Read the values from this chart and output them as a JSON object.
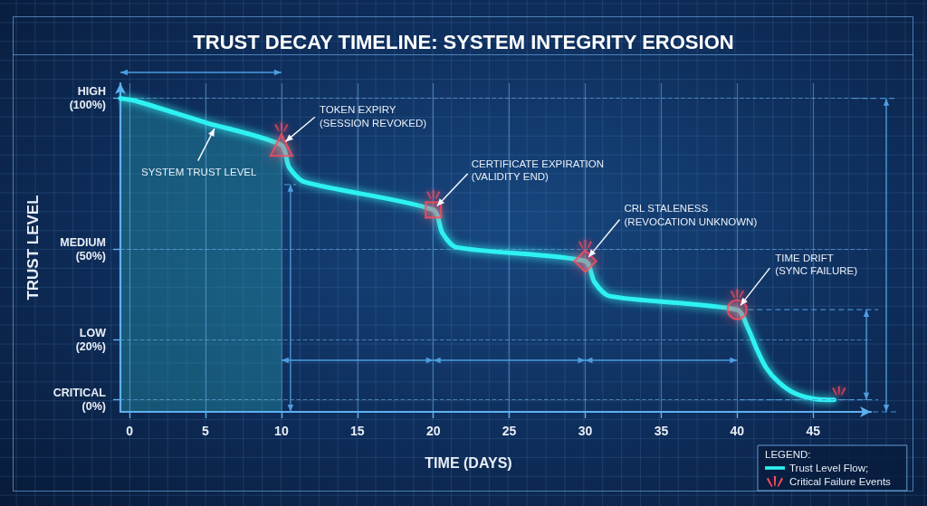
{
  "chart_data": {
    "type": "line",
    "title": "TRUST DECAY TIMELINE: SYSTEM INTEGRITY EROSION",
    "xlabel": "TIME (DAYS)",
    "ylabel": "TRUST LEVEL",
    "legend_title": "LEGEND:",
    "legend": "bottom right",
    "grid": true,
    "xlim": [
      -0.6,
      48.8
    ],
    "xticks": [
      0,
      5,
      10,
      15,
      20,
      25,
      30,
      35,
      40,
      45
    ],
    "ylim": [
      -4,
      105
    ],
    "yticks": [
      {
        "value": 0,
        "label": "CRITICAL\n(0%)"
      },
      {
        "value": 20,
        "label": "LOW\n(20%)"
      },
      {
        "value": 50,
        "label": "MEDIUM\n(50%)"
      },
      {
        "value": 100,
        "label": "HIGH\n(100%)"
      }
    ],
    "series": [
      {
        "name": "Trust Level Flow;",
        "color": "#2ef2f2",
        "marker": "none",
        "x": [
          -0.6,
          0.3,
          5,
          10,
          10.5,
          11.5,
          20,
          20.6,
          21.5,
          30,
          30.6,
          31.6,
          40,
          40.7,
          41.3,
          41.9,
          42.7,
          43.7,
          45.1,
          46.4
        ],
        "values": [
          100,
          99.3,
          92,
          84.5,
          77.2,
          72.3,
          63,
          55.3,
          50.6,
          46,
          39.1,
          34.4,
          29.9,
          23.9,
          16.7,
          10.7,
          6,
          2.4,
          0.3,
          0
        ]
      },
      {
        "type": "scatter",
        "color": "#ff4a5c",
        "marker": "triangle",
        "x": [
          10
        ],
        "values": [
          84.5
        ]
      },
      {
        "type": "scatter",
        "color": "#ff4a5c",
        "marker": "square",
        "x": [
          20
        ],
        "values": [
          63
        ]
      },
      {
        "type": "scatter",
        "color": "#ff4a5c",
        "marker": "diamond",
        "x": [
          30
        ],
        "values": [
          46
        ]
      },
      {
        "type": "scatter",
        "color": "#ff4a5c",
        "marker": "circle",
        "x": [
          40
        ],
        "values": [
          29.9
        ]
      },
      {
        "name": "Critical Failure Events",
        "type": "scatter",
        "color": "#ff4a5c",
        "x": [
          10,
          20,
          30,
          40,
          46.7
        ],
        "values": [
          90.4,
          68.1,
          51.6,
          35.2,
          3
        ]
      }
    ],
    "annotations": [
      {
        "text": "SYSTEM TRUST LEVEL",
        "x": 5.7,
        "y": 91
      },
      {
        "text": "TOKEN EXPIRY\n(SESSION REVOKED)",
        "x": 10,
        "y": 84.5
      },
      {
        "text": "CERTIFICATE EXPIRATION\n(VALIDITY END)",
        "x": 20,
        "y": 63
      },
      {
        "text": "CRL STALENESS\n(REVOCATION UNKNOWN)",
        "x": 30,
        "y": 46
      },
      {
        "text": "TIME DRIFT\n(SYNC FAILURE)",
        "x": 40,
        "y": 29.9
      }
    ]
  }
}
